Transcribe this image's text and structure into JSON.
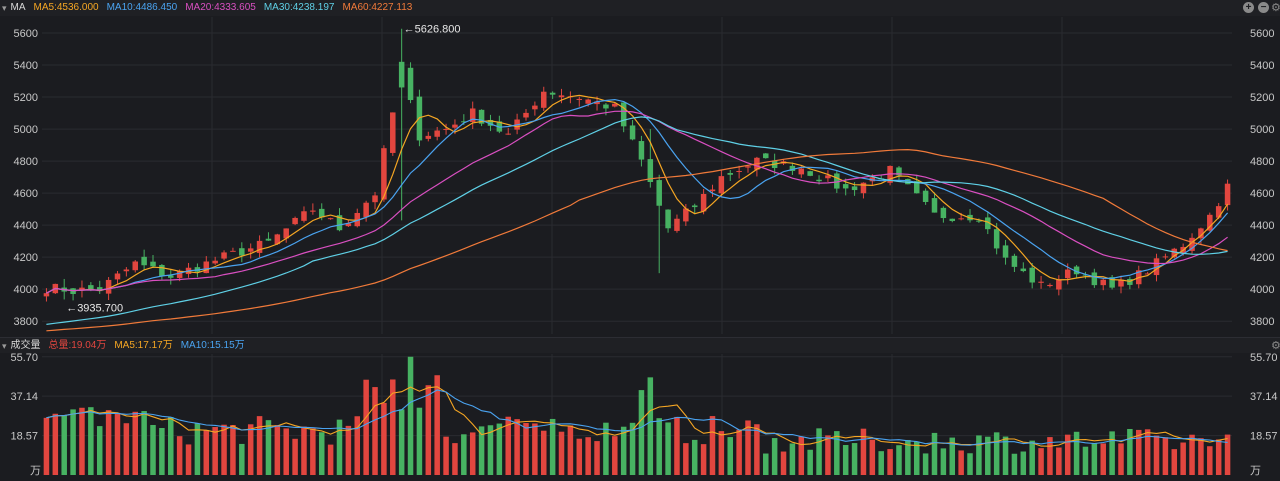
{
  "kline_header": {
    "indicator_label": "MA",
    "ma_items": [
      {
        "text": "MA5:4536.000",
        "color": "#f5a623"
      },
      {
        "text": "MA10:4486.450",
        "color": "#4aa3f0"
      },
      {
        "text": "MA20:4333.605",
        "color": "#d94fc1"
      },
      {
        "text": "MA30:4238.197",
        "color": "#5fd0e6"
      },
      {
        "text": "MA60:4227.113",
        "color": "#f07a3a"
      }
    ],
    "controls": {
      "zoom_in": "+",
      "zoom_out": "−",
      "settings": "⚙"
    }
  },
  "volume_header": {
    "indicator_label": "成交量",
    "items": [
      {
        "text": "总量:19.04万",
        "color": "#e2463f"
      },
      {
        "text": "MA5:17.17万",
        "color": "#f5a623"
      },
      {
        "text": "MA10:15.15万",
        "color": "#4aa3f0"
      }
    ],
    "controls": {
      "settings": "⚙"
    }
  },
  "colors": {
    "up": "#e2463f",
    "down": "#47b262",
    "ma5": "#f5a623",
    "ma10": "#4aa3f0",
    "ma20": "#d94fc1",
    "ma30": "#5fd0e6",
    "ma60": "#f07a3a",
    "grid": "#2a2b30",
    "axis_text": "#c8c8c8"
  },
  "chart_data": [
    {
      "type": "candlestick",
      "price_ticks": [
        3800,
        4000,
        4200,
        4400,
        4600,
        4800,
        5000,
        5200,
        5400,
        5600
      ],
      "ylim": [
        3720,
        5700
      ],
      "candle_count": 134,
      "annotations": [
        {
          "text": "←5626.800",
          "index": 40,
          "value": 5626.8
        },
        {
          "text": "←3935.700",
          "index": 2,
          "value": 3935.7
        }
      ],
      "close_anchors": [
        [
          0,
          4010
        ],
        [
          3,
          3990
        ],
        [
          6,
          4000
        ],
        [
          10,
          4160
        ],
        [
          14,
          4080
        ],
        [
          20,
          4200
        ],
        [
          25,
          4290
        ],
        [
          30,
          4500
        ],
        [
          33,
          4380
        ],
        [
          37,
          4600
        ],
        [
          40,
          5350
        ],
        [
          42,
          4960
        ],
        [
          45,
          5000
        ],
        [
          48,
          5100
        ],
        [
          52,
          4960
        ],
        [
          56,
          5240
        ],
        [
          60,
          5200
        ],
        [
          64,
          5130
        ],
        [
          67,
          4800
        ],
        [
          70,
          4380
        ],
        [
          73,
          4520
        ],
        [
          76,
          4700
        ],
        [
          80,
          4800
        ],
        [
          85,
          4760
        ],
        [
          90,
          4620
        ],
        [
          95,
          4740
        ],
        [
          100,
          4460
        ],
        [
          105,
          4460
        ],
        [
          108,
          4180
        ],
        [
          112,
          4020
        ],
        [
          116,
          4120
        ],
        [
          120,
          4000
        ],
        [
          124,
          4120
        ],
        [
          128,
          4280
        ],
        [
          131,
          4460
        ],
        [
          133,
          4640
        ]
      ],
      "ma_end_values": {
        "MA5": 4536.0,
        "MA10": 4486.45,
        "MA20": 4333.605,
        "MA30": 4238.197,
        "MA60": 4227.113
      }
    },
    {
      "type": "bar",
      "name": "成交量",
      "unit": "万",
      "axis_ticks": [
        "55.70",
        "37.14",
        "18.57"
      ],
      "ylim": [
        0,
        57
      ],
      "last_value": 19.04,
      "ma5_last": 17.17,
      "ma10_last": 15.15
    }
  ]
}
